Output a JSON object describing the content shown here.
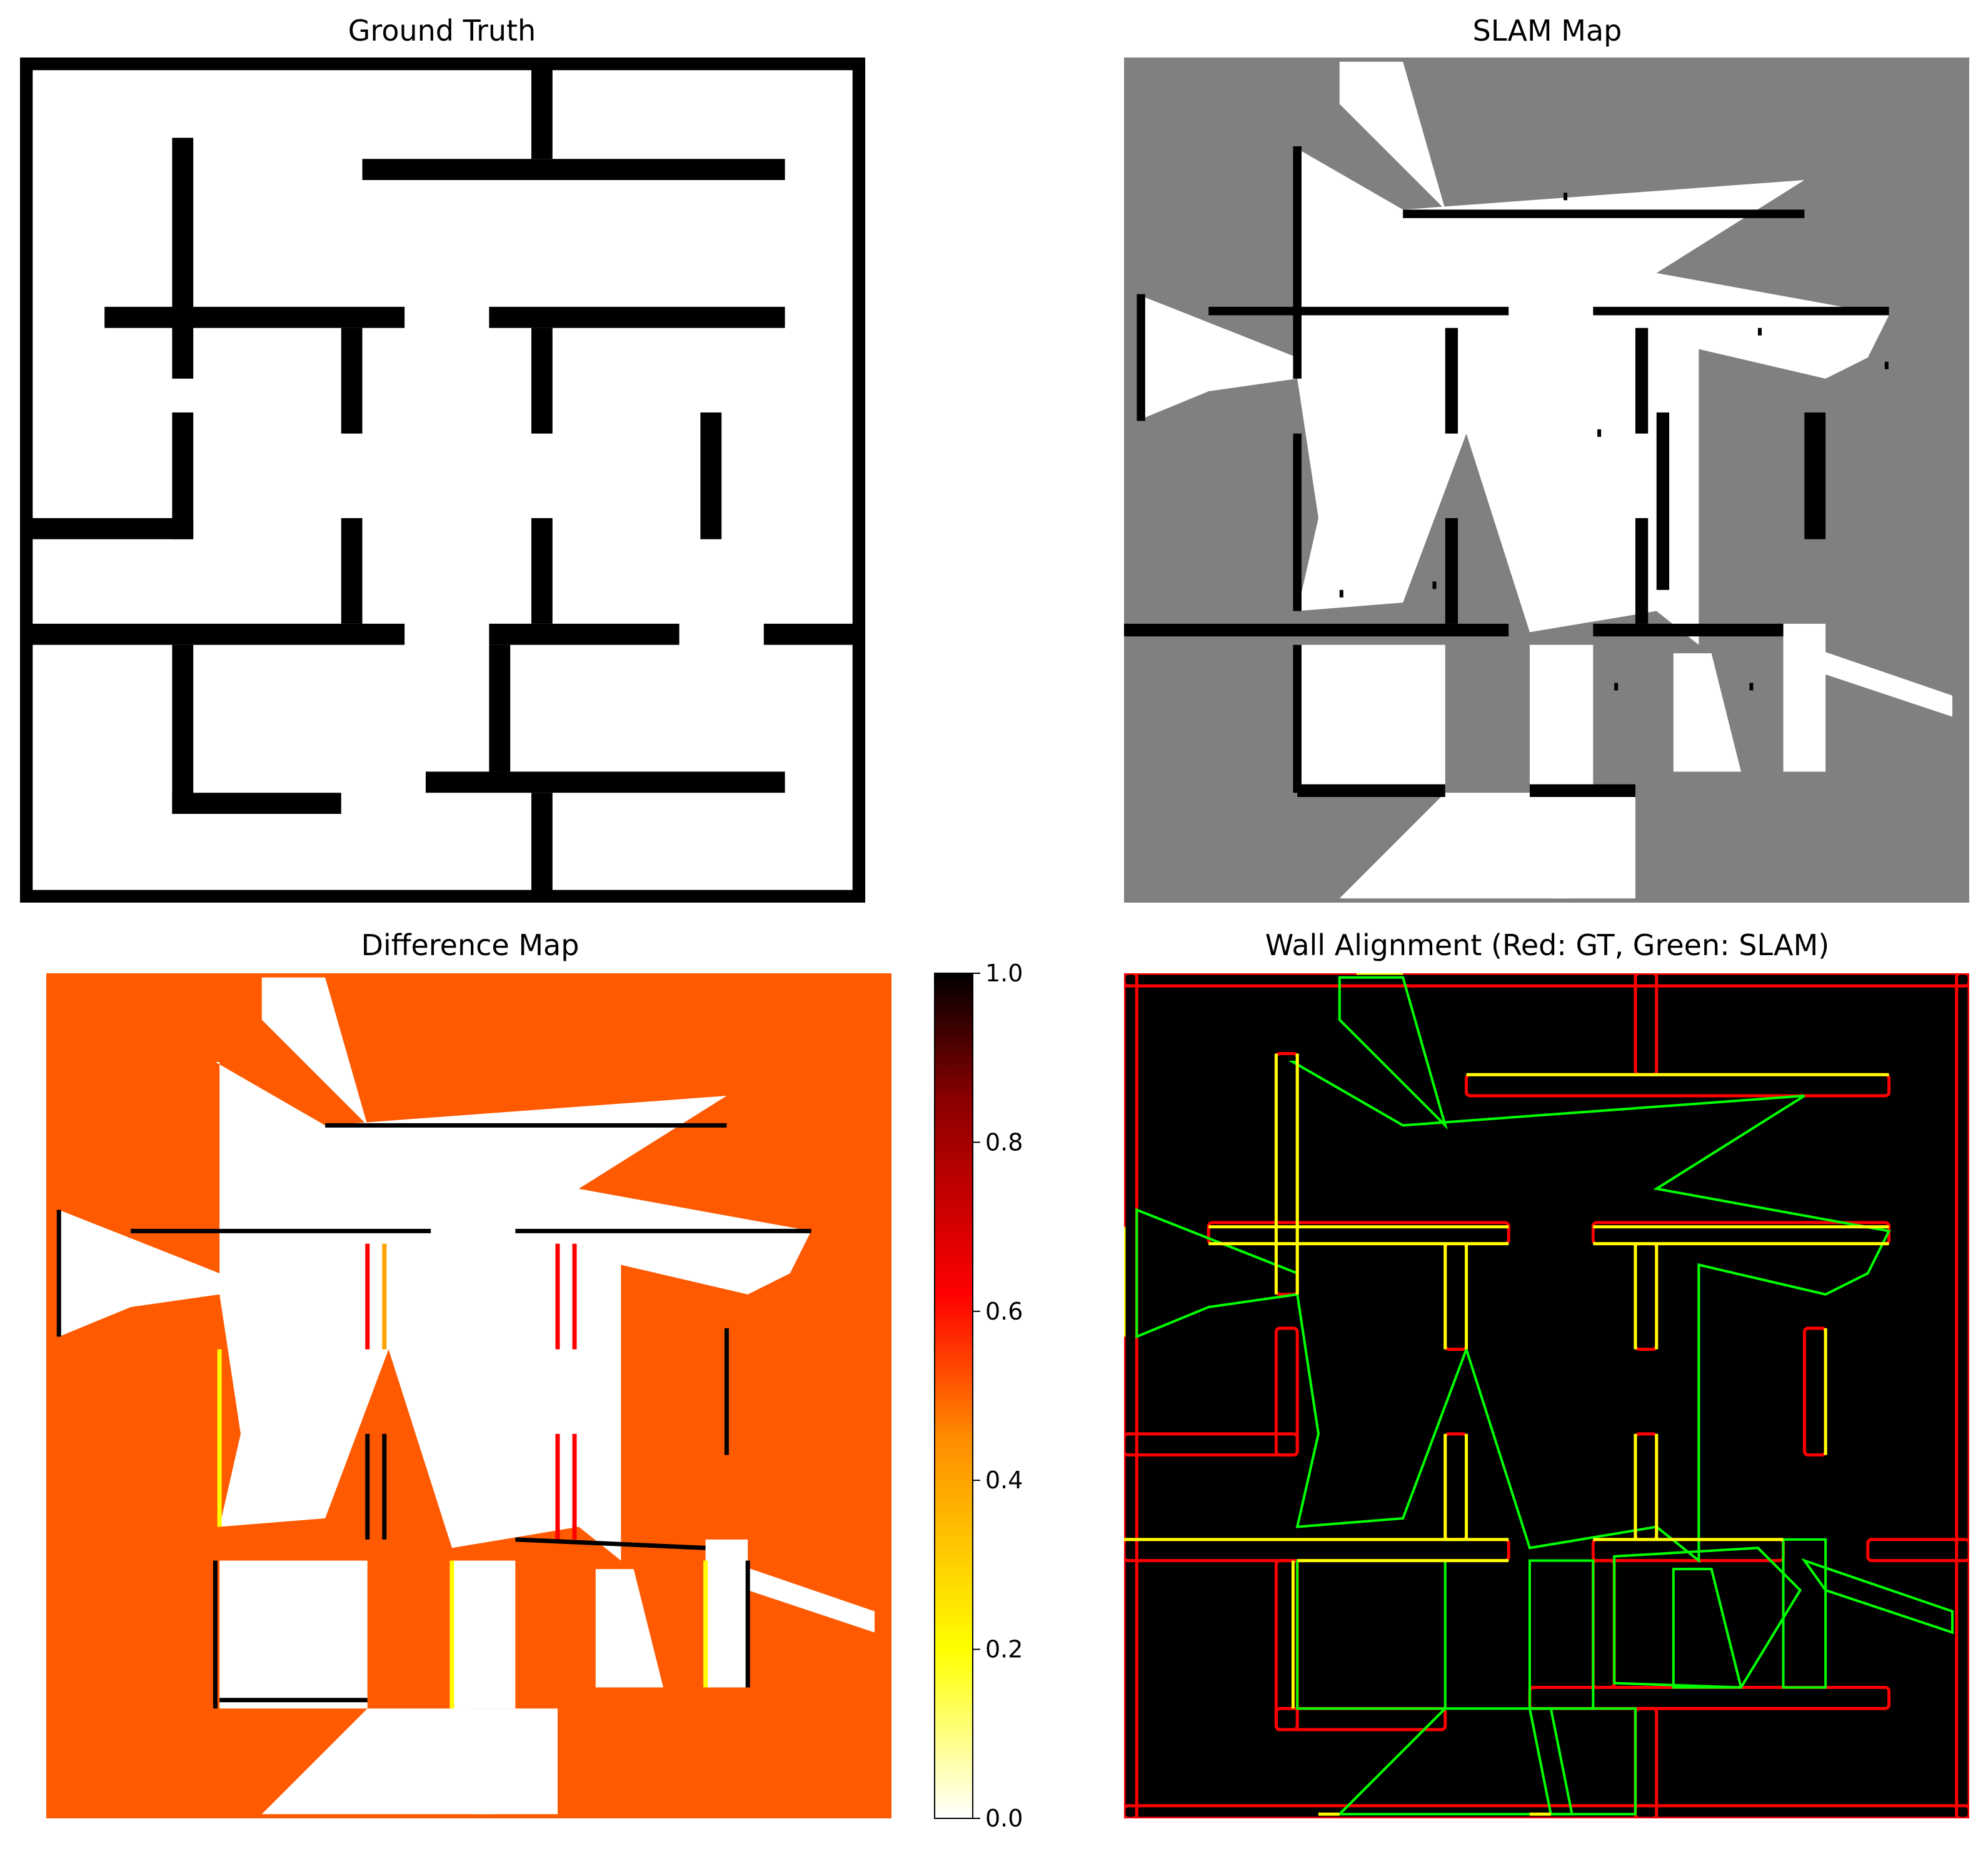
{
  "colors": {
    "wall": "#000000",
    "free": "#ffffff",
    "unknown": "#808080",
    "diff_unknown": "#ff5a00",
    "align_bg": "#000000",
    "gt_edge": "#ff0000",
    "slam_edge": "#00ff00",
    "overlap_edge": "#ffff00"
  },
  "chart_data": [
    {
      "type": "heatmap",
      "panel": "ground_truth",
      "title": "Ground Truth",
      "colormap": "binary",
      "walls": [
        [
          0,
          0,
          200,
          3
        ],
        [
          0,
          197,
          200,
          200
        ],
        [
          0,
          0,
          3,
          200
        ],
        [
          197,
          0,
          200,
          200
        ],
        [
          121,
          0,
          126,
          24
        ],
        [
          81,
          24,
          181,
          29
        ],
        [
          36,
          19,
          41,
          76
        ],
        [
          20,
          59,
          91,
          64
        ],
        [
          111,
          59,
          181,
          64
        ],
        [
          76,
          64,
          81,
          89
        ],
        [
          121,
          64,
          126,
          89
        ],
        [
          36,
          84,
          41,
          114
        ],
        [
          0,
          109,
          41,
          114
        ],
        [
          161,
          84,
          166,
          114
        ],
        [
          76,
          109,
          81,
          134
        ],
        [
          121,
          109,
          126,
          134
        ],
        [
          0,
          134,
          91,
          139
        ],
        [
          111,
          134,
          156,
          139
        ],
        [
          176,
          134,
          200,
          139
        ],
        [
          36,
          139,
          41,
          179
        ],
        [
          36,
          174,
          76,
          179
        ],
        [
          111,
          139,
          116,
          169
        ],
        [
          96,
          169,
          181,
          174
        ],
        [
          121,
          174,
          126,
          200
        ]
      ]
    },
    {
      "type": "heatmap",
      "panel": "slam_map",
      "title": "SLAM Map",
      "colormap": "gray",
      "free_regions": [
        [
          [
            51,
            1
          ],
          [
            66,
            1
          ],
          [
            76,
            36
          ],
          [
            51,
            11
          ]
        ],
        [
          [
            40,
            21
          ],
          [
            66,
            36
          ],
          [
            161,
            29
          ],
          [
            126,
            51
          ],
          [
            181,
            61
          ],
          [
            176,
            71
          ],
          [
            166,
            76
          ],
          [
            136,
            69
          ],
          [
            136,
            139
          ],
          [
            126,
            131
          ],
          [
            96,
            136
          ],
          [
            81,
            89
          ],
          [
            66,
            129
          ],
          [
            41,
            131
          ],
          [
            46,
            109
          ],
          [
            41,
            76
          ],
          [
            20,
            79
          ],
          [
            3,
            86
          ],
          [
            3,
            56
          ],
          [
            41,
            71
          ],
          [
            41,
            21
          ]
        ],
        [
          [
            41,
            139
          ],
          [
            76,
            139
          ],
          [
            76,
            174
          ],
          [
            41,
            174
          ]
        ],
        [
          [
            96,
            139
          ],
          [
            111,
            139
          ],
          [
            111,
            174
          ],
          [
            96,
            174
          ]
        ],
        [
          [
            130,
            141
          ],
          [
            139,
            141
          ],
          [
            146,
            169
          ],
          [
            130,
            169
          ]
        ],
        [
          [
            156,
            134
          ],
          [
            166,
            134
          ],
          [
            166,
            169
          ],
          [
            156,
            169
          ]
        ],
        [
          [
            161,
            139
          ],
          [
            196,
            151
          ],
          [
            196,
            156
          ],
          [
            166,
            146
          ]
        ],
        [
          [
            76,
            174
          ],
          [
            101,
            174
          ],
          [
            106,
            199
          ],
          [
            51,
            199
          ]
        ],
        [
          [
            96,
            174
          ],
          [
            121,
            174
          ],
          [
            121,
            199
          ],
          [
            101,
            199
          ]
        ]
      ],
      "walls": [
        [
          40,
          21,
          42,
          76
        ],
        [
          40,
          89,
          42,
          131
        ],
        [
          40,
          139,
          42,
          174
        ],
        [
          66,
          36,
          161,
          38
        ],
        [
          20,
          59,
          91,
          61
        ],
        [
          111,
          59,
          181,
          61
        ],
        [
          76,
          64,
          79,
          89
        ],
        [
          121,
          64,
          124,
          89
        ],
        [
          126,
          84,
          129,
          126
        ],
        [
          161,
          84,
          166,
          114
        ],
        [
          76,
          109,
          79,
          134
        ],
        [
          121,
          109,
          124,
          134
        ],
        [
          0,
          134,
          91,
          137
        ],
        [
          111,
          134,
          156,
          137
        ],
        [
          41,
          172,
          76,
          175
        ],
        [
          96,
          172,
          121,
          175
        ],
        [
          3,
          56,
          5,
          86
        ]
      ],
      "scatter_marks": [
        [
          112,
          88
        ],
        [
          123,
          78
        ],
        [
          51,
          126
        ],
        [
          73,
          124
        ],
        [
          150,
          64
        ],
        [
          104,
          32
        ],
        [
          180,
          72
        ],
        [
          116,
          148
        ],
        [
          148,
          148
        ]
      ]
    },
    {
      "type": "heatmap",
      "panel": "difference_map",
      "title": "Difference Map",
      "colormap": "hot_r",
      "colorbar": {
        "min": 0.0,
        "max": 1.0,
        "ticks": [
          "0.0",
          "0.2",
          "0.4",
          "0.6",
          "0.8",
          "1.0"
        ]
      },
      "edge_marks": [
        [
          20,
          61,
          91,
          61,
          "#000000"
        ],
        [
          111,
          61,
          181,
          61,
          "#000000"
        ],
        [
          76,
          64,
          76,
          89,
          "#ff0000"
        ],
        [
          80,
          64,
          80,
          89,
          "#ffa500"
        ],
        [
          121,
          64,
          121,
          89,
          "#ff0000"
        ],
        [
          125,
          64,
          125,
          89,
          "#ff0000"
        ],
        [
          121,
          109,
          121,
          134,
          "#ff0000"
        ],
        [
          125,
          109,
          125,
          134,
          "#ff0000"
        ],
        [
          76,
          109,
          76,
          134,
          "#000000"
        ],
        [
          80,
          109,
          80,
          134,
          "#000000"
        ],
        [
          41,
          89,
          41,
          131,
          "#ffff00"
        ],
        [
          40,
          139,
          40,
          174,
          "#000000"
        ],
        [
          161,
          84,
          161,
          114,
          "#000000"
        ],
        [
          66,
          36,
          161,
          36,
          "#000000"
        ],
        [
          96,
          139,
          96,
          174,
          "#ffff00"
        ],
        [
          111,
          134,
          156,
          136,
          "#000000"
        ],
        [
          3,
          56,
          3,
          86,
          "#000000"
        ],
        [
          156,
          139,
          156,
          169,
          "#ffff00"
        ],
        [
          166,
          139,
          166,
          169,
          "#000000"
        ],
        [
          41,
          172,
          76,
          172,
          "#000000"
        ]
      ]
    },
    {
      "type": "heatmap",
      "panel": "wall_alignment",
      "title": "Wall Alignment (Red: GT, Green: SLAM)",
      "gt_walls": [
        [
          0,
          0,
          200,
          3
        ],
        [
          0,
          197,
          200,
          200
        ],
        [
          0,
          0,
          3,
          200
        ],
        [
          197,
          0,
          200,
          200
        ],
        [
          121,
          0,
          126,
          24
        ],
        [
          81,
          24,
          181,
          29
        ],
        [
          36,
          19,
          41,
          76
        ],
        [
          20,
          59,
          91,
          64
        ],
        [
          111,
          59,
          181,
          64
        ],
        [
          76,
          64,
          81,
          89
        ],
        [
          121,
          64,
          126,
          89
        ],
        [
          36,
          84,
          41,
          114
        ],
        [
          0,
          109,
          41,
          114
        ],
        [
          161,
          84,
          166,
          114
        ],
        [
          76,
          109,
          81,
          134
        ],
        [
          121,
          109,
          126,
          134
        ],
        [
          0,
          134,
          91,
          139
        ],
        [
          111,
          134,
          156,
          139
        ],
        [
          176,
          134,
          200,
          139
        ],
        [
          36,
          139,
          41,
          179
        ],
        [
          36,
          174,
          76,
          179
        ],
        [
          111,
          139,
          116,
          169
        ],
        [
          96,
          169,
          181,
          174
        ],
        [
          121,
          174,
          126,
          200
        ]
      ],
      "overlap_segments": [
        [
          20,
          60,
          91,
          60
        ],
        [
          20,
          64,
          91,
          64
        ],
        [
          111,
          60,
          181,
          60
        ],
        [
          111,
          64,
          181,
          64
        ],
        [
          76,
          64,
          76,
          89
        ],
        [
          81,
          64,
          81,
          89
        ],
        [
          121,
          64,
          121,
          89
        ],
        [
          126,
          64,
          126,
          89
        ],
        [
          121,
          109,
          121,
          134
        ],
        [
          126,
          109,
          126,
          134
        ],
        [
          76,
          109,
          76,
          134
        ],
        [
          81,
          109,
          81,
          134
        ],
        [
          36,
          19,
          36,
          76
        ],
        [
          41,
          19,
          41,
          76
        ],
        [
          0,
          134,
          91,
          134
        ],
        [
          41,
          139,
          91,
          139
        ],
        [
          111,
          134,
          156,
          134
        ],
        [
          166,
          84,
          166,
          114
        ],
        [
          40,
          139,
          40,
          174
        ],
        [
          55,
          0,
          66,
          0
        ],
        [
          0,
          60,
          0,
          86
        ],
        [
          81,
          24,
          181,
          24
        ],
        [
          46,
          199,
          51,
          199
        ],
        [
          96,
          199,
          101,
          199
        ]
      ],
      "slam_contours": [
        [
          [
            51,
            1
          ],
          [
            66,
            1
          ],
          [
            76,
            36
          ],
          [
            51,
            11
          ]
        ],
        [
          [
            40,
            21
          ],
          [
            66,
            36
          ],
          [
            161,
            29
          ],
          [
            126,
            51
          ],
          [
            181,
            61
          ],
          [
            176,
            71
          ],
          [
            166,
            76
          ],
          [
            136,
            69
          ],
          [
            136,
            139
          ],
          [
            126,
            131
          ],
          [
            96,
            136
          ],
          [
            81,
            89
          ],
          [
            66,
            129
          ],
          [
            41,
            131
          ],
          [
            46,
            109
          ],
          [
            41,
            76
          ],
          [
            20,
            79
          ],
          [
            3,
            86
          ],
          [
            3,
            56
          ],
          [
            41,
            71
          ],
          [
            41,
            21
          ]
        ],
        [
          [
            41,
            139
          ],
          [
            76,
            139
          ],
          [
            76,
            174
          ],
          [
            41,
            174
          ]
        ],
        [
          [
            96,
            139
          ],
          [
            111,
            139
          ],
          [
            111,
            174
          ],
          [
            96,
            174
          ]
        ],
        [
          [
            116,
            138
          ],
          [
            150,
            136
          ],
          [
            160,
            146
          ],
          [
            146,
            169
          ],
          [
            116,
            168
          ]
        ],
        [
          [
            161,
            139
          ],
          [
            196,
            151
          ],
          [
            196,
            156
          ],
          [
            166,
            146
          ]
        ],
        [
          [
            76,
            174
          ],
          [
            101,
            174
          ],
          [
            106,
            199
          ],
          [
            51,
            199
          ]
        ],
        [
          [
            96,
            174
          ],
          [
            121,
            174
          ],
          [
            121,
            199
          ],
          [
            101,
            199
          ]
        ],
        [
          [
            156,
            134
          ],
          [
            166,
            134
          ],
          [
            166,
            169
          ],
          [
            156,
            169
          ]
        ],
        [
          [
            130,
            141
          ],
          [
            139,
            141
          ],
          [
            146,
            169
          ],
          [
            130,
            169
          ]
        ]
      ]
    }
  ]
}
